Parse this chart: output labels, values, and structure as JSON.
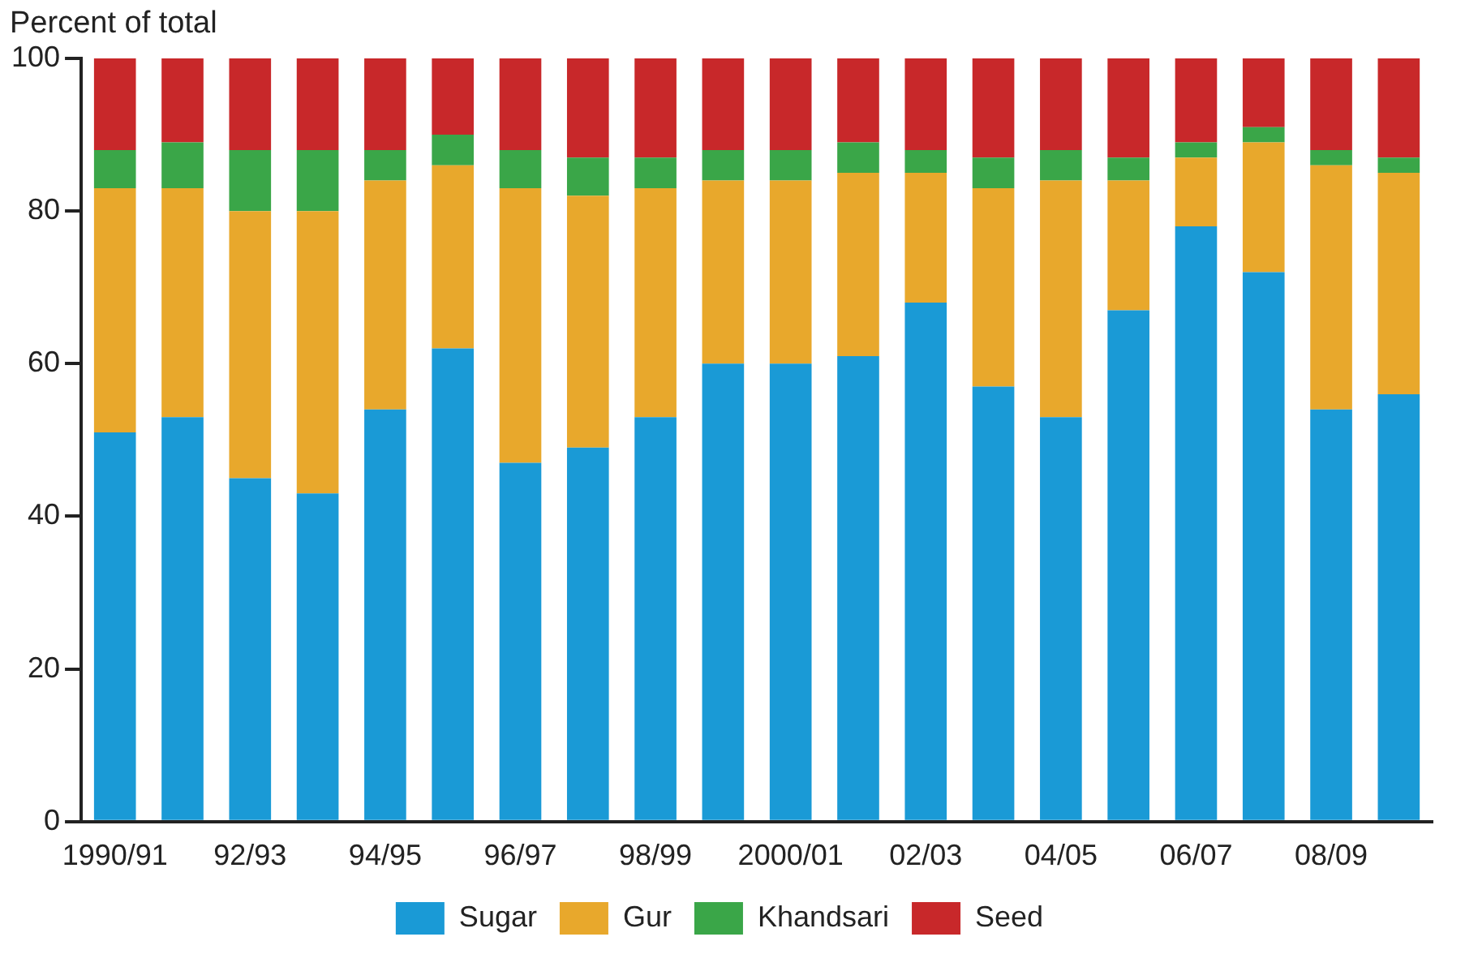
{
  "chart_data": {
    "type": "bar",
    "stacked": true,
    "ylabel": "Percent of total",
    "categories": [
      "1990/91",
      null,
      "92/93",
      null,
      "94/95",
      null,
      "96/97",
      null,
      "98/99",
      null,
      "2000/01",
      null,
      "02/03",
      null,
      "04/05",
      null,
      "06/07",
      null,
      "08/09",
      null
    ],
    "series": [
      {
        "name": "Sugar",
        "color": "#1a9ad6",
        "values": [
          51,
          53,
          45,
          43,
          54,
          62,
          47,
          49,
          53,
          60,
          60,
          61,
          68,
          57,
          53,
          67,
          78,
          72,
          54,
          56
        ]
      },
      {
        "name": "Gur",
        "color": "#e8a82c",
        "values": [
          32,
          30,
          35,
          37,
          30,
          24,
          36,
          33,
          30,
          24,
          24,
          24,
          17,
          26,
          31,
          17,
          9,
          17,
          32,
          29
        ]
      },
      {
        "name": "Khandsari",
        "color": "#3aa648",
        "values": [
          5,
          6,
          8,
          8,
          4,
          4,
          5,
          5,
          4,
          4,
          4,
          4,
          3,
          4,
          4,
          3,
          2,
          2,
          2,
          2
        ]
      },
      {
        "name": "Seed",
        "color": "#c8282a",
        "values": [
          12,
          11,
          12,
          12,
          12,
          10,
          12,
          13,
          13,
          12,
          12,
          11,
          12,
          13,
          12,
          13,
          11,
          9,
          12,
          13
        ]
      }
    ],
    "ylim": [
      0,
      100
    ],
    "yticks": [
      0,
      20,
      40,
      60,
      80,
      100
    ],
    "grid": false,
    "legend": "bottom"
  }
}
